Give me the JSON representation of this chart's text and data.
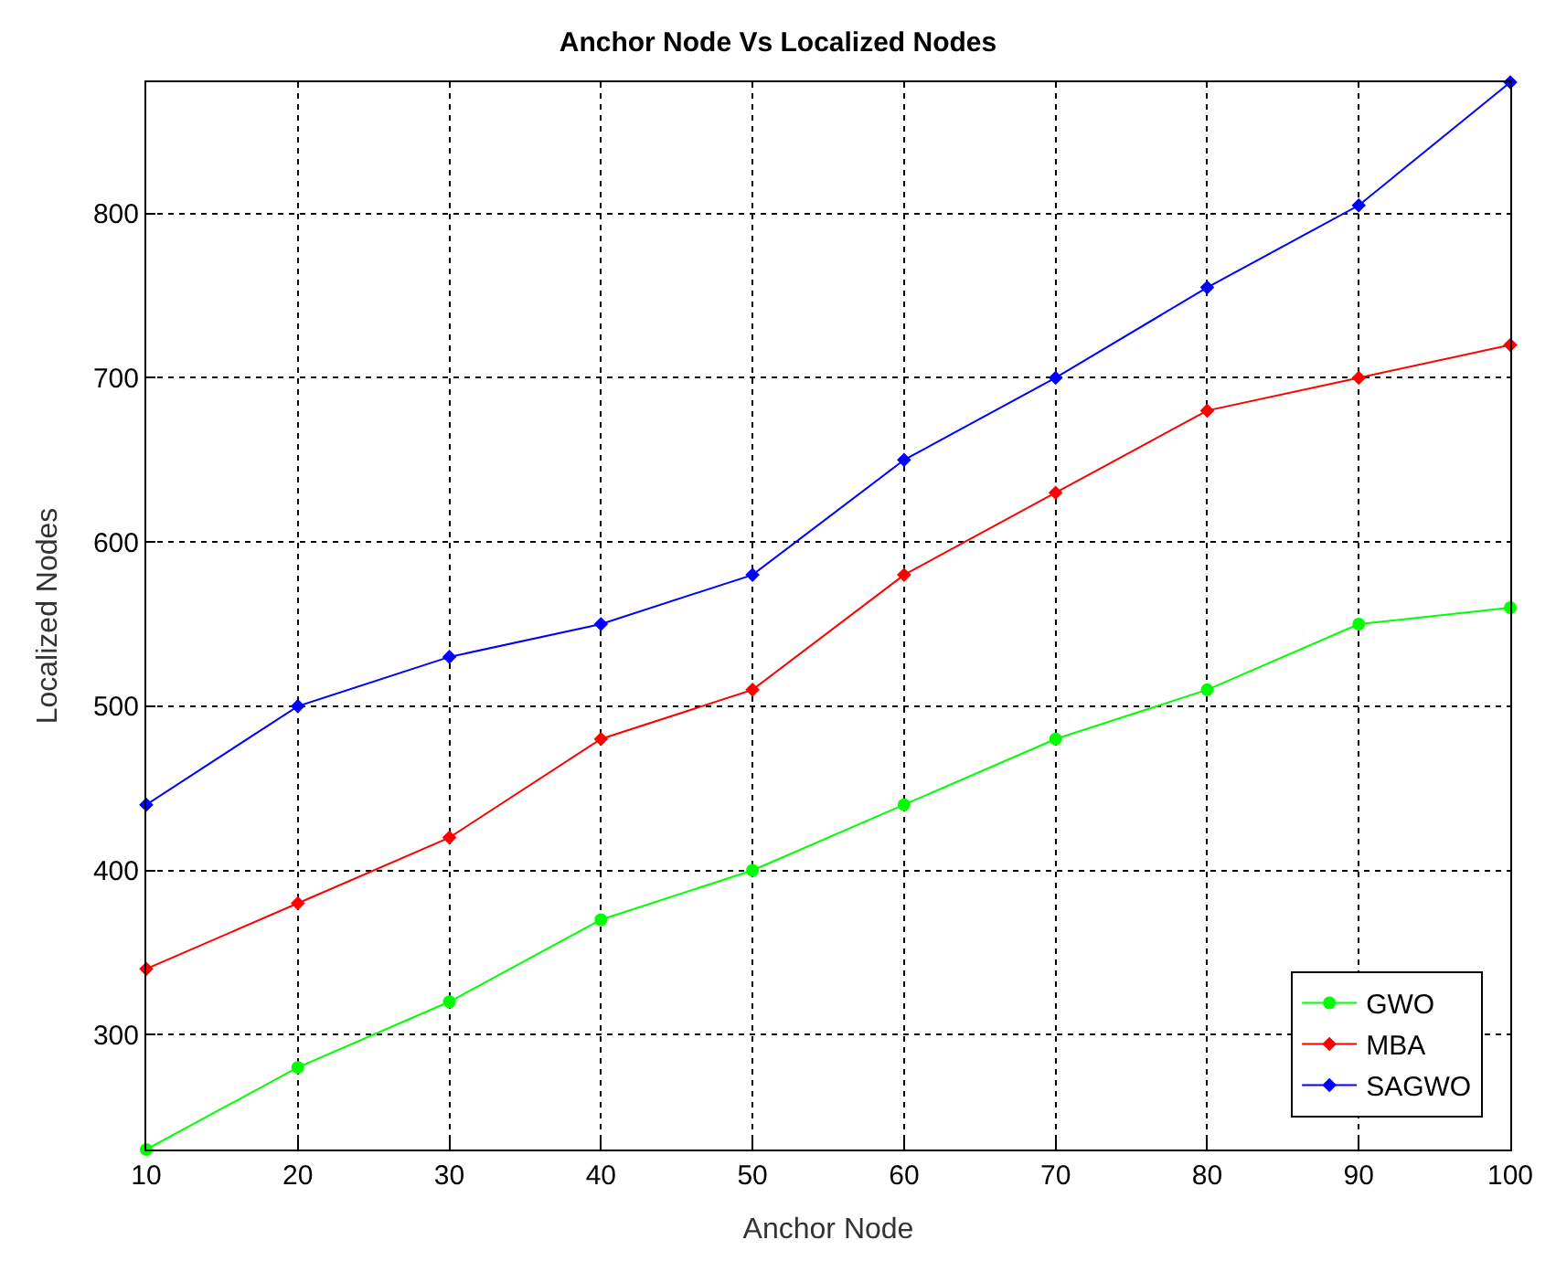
{
  "chart_data": {
    "type": "line",
    "title": "Anchor Node Vs Localized Nodes",
    "xlabel": "Anchor Node",
    "ylabel": "Localized Nodes",
    "x": [
      10,
      20,
      30,
      40,
      50,
      60,
      70,
      80,
      90,
      100
    ],
    "series": [
      {
        "name": "GWO",
        "color": "#00ff00",
        "marker": "circle",
        "values": [
          230,
          280,
          320,
          370,
          400,
          440,
          480,
          510,
          550,
          560
        ]
      },
      {
        "name": "MBA",
        "color": "#ff0000",
        "marker": "diamond",
        "values": [
          340,
          380,
          420,
          480,
          510,
          580,
          630,
          680,
          700,
          720
        ]
      },
      {
        "name": "SAGWO",
        "color": "#0000ff",
        "marker": "diamond",
        "values": [
          440,
          500,
          530,
          550,
          580,
          650,
          700,
          755,
          805,
          880
        ]
      }
    ],
    "xlim": [
      10,
      100
    ],
    "xticks": [
      10,
      20,
      30,
      40,
      50,
      60,
      70,
      80,
      90,
      100
    ],
    "ylim": [
      230,
      880
    ],
    "yticks": [
      300,
      400,
      500,
      600,
      700,
      800
    ],
    "grid": true,
    "legend": "bottom right",
    "line_style": "solid"
  }
}
